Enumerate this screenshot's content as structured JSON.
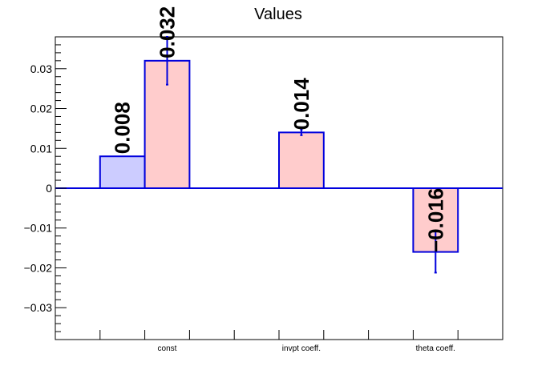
{
  "chart_data": {
    "type": "bar",
    "title": "Values",
    "xlabel": "",
    "ylabel": "",
    "categories": [
      "const",
      "invpt coeff.",
      "theta coeff."
    ],
    "ylim": [
      -0.038,
      0.038
    ],
    "yticks": [
      {
        "value": 0.03,
        "label": "0.03"
      },
      {
        "value": 0.02,
        "label": "0.02"
      },
      {
        "value": 0.01,
        "label": "0.01"
      },
      {
        "value": 0,
        "label": "0"
      },
      {
        "value": -0.01,
        "label": "−0.01"
      },
      {
        "value": -0.02,
        "label": "−0.02"
      },
      {
        "value": -0.03,
        "label": "−0.03"
      }
    ],
    "grid": false,
    "legend": "none",
    "bars": [
      {
        "slot": 1,
        "value": 0.008,
        "error": null,
        "label": "0.008",
        "fill": "#ccccff"
      },
      {
        "slot": 2,
        "value": 0.032,
        "error": 0.006,
        "label": "0.032",
        "fill": "#ffcccc"
      },
      {
        "slot": 5,
        "value": 0.014,
        "error": 0.0007,
        "label": "0.014",
        "fill": "#ffcccc"
      },
      {
        "slot": 8,
        "value": -0.016,
        "error": 0.0052,
        "label": "−0.016",
        "fill": "#ffcccc"
      }
    ],
    "colors": {
      "edge": "#0000dd",
      "axis": "#000000"
    }
  }
}
